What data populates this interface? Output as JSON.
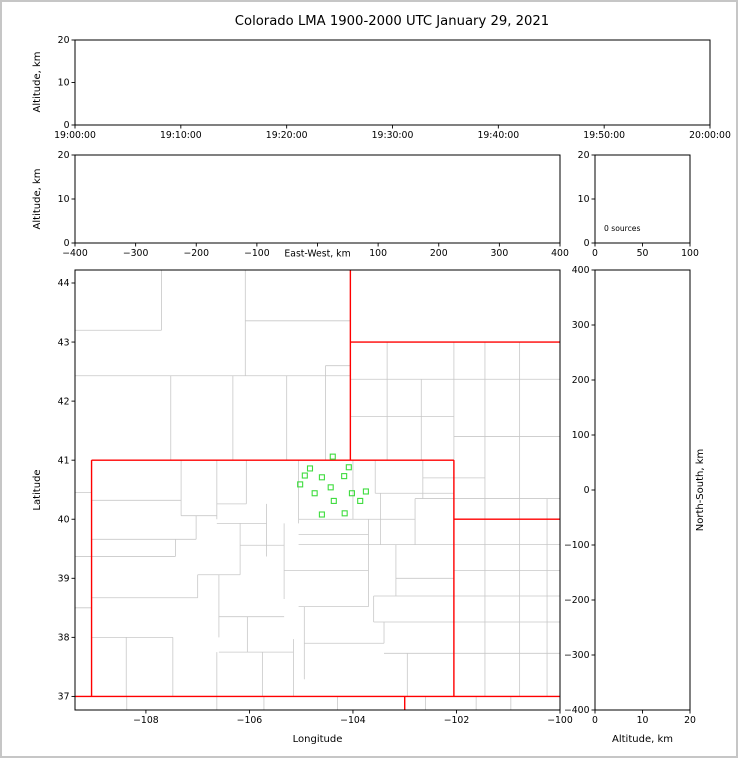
{
  "title": "Colorado LMA 1900-2000 UTC January 29, 2021",
  "colors": {
    "axis": "#000000",
    "state_border": "#ff0000",
    "county_line": "#c8c8c8",
    "station_marker": "#3ddc3d",
    "background": "#ffffff",
    "frame_border": "#c6c6c6"
  },
  "chart_data": [
    {
      "id": "time_height",
      "type": "scatter",
      "ylabel": "Altitude, km",
      "xlabel": "",
      "xlim": [
        0,
        6
      ],
      "ylim": [
        0,
        20
      ],
      "xtick_vals": [
        0,
        1,
        2,
        3,
        4,
        5,
        6
      ],
      "xtick_labels": [
        "19:00:00",
        "19:10:00",
        "19:20:00",
        "19:30:00",
        "19:40:00",
        "19:50:00",
        "20:00:00"
      ],
      "ytick_vals": [
        0,
        10,
        20
      ],
      "ytick_labels": [
        "0",
        "10",
        "20"
      ],
      "points": []
    },
    {
      "id": "ew_height",
      "type": "scatter",
      "ylabel": "Altitude, km",
      "xlabel": "East-West, km",
      "xlabel_inline": true,
      "xlim": [
        -400,
        400
      ],
      "ylim": [
        0,
        20
      ],
      "xtick_vals": [
        -400,
        -300,
        -200,
        -100,
        0,
        100,
        200,
        300,
        400
      ],
      "xtick_labels": [
        "−400",
        "−300",
        "−200",
        "−100",
        "",
        "100",
        "200",
        "300",
        "400"
      ],
      "ytick_vals": [
        0,
        10,
        20
      ],
      "ytick_labels": [
        "0",
        "10",
        "20"
      ],
      "points": []
    },
    {
      "id": "src_hist",
      "type": "histogram",
      "annotation": "0 sources",
      "xlim": [
        0,
        100
      ],
      "ylim": [
        0,
        20
      ],
      "xtick_vals": [
        0,
        50,
        100
      ],
      "xtick_labels": [
        "0",
        "50",
        "100"
      ],
      "ytick_vals": [
        0,
        10,
        20
      ],
      "ytick_labels": [
        "0",
        "10",
        "20"
      ],
      "points": []
    },
    {
      "id": "map",
      "type": "map",
      "xlabel": "Longitude",
      "ylabel": "Latitude",
      "xlim": [
        -109.37,
        -100
      ],
      "ylim": [
        36.77,
        44.22
      ],
      "xtick_vals": [
        -108,
        -106,
        -104,
        -102,
        -100
      ],
      "xtick_labels": [
        "−108",
        "−106",
        "−104",
        "−102",
        "−100"
      ],
      "ytick_vals": [
        37,
        38,
        39,
        40,
        41,
        42,
        43,
        44
      ],
      "ytick_labels": [
        "37",
        "38",
        "39",
        "40",
        "41",
        "42",
        "43",
        "44"
      ],
      "state_borders": [
        [
          -109.05,
          37.0,
          -109.05,
          41.0
        ],
        [
          -109.05,
          41.0,
          -102.05,
          41.0
        ],
        [
          -102.05,
          37.0,
          -102.05,
          41.0
        ],
        [
          -109.37,
          37.0,
          -100.0,
          37.0
        ],
        [
          -104.05,
          41.0,
          -104.05,
          44.22
        ],
        [
          -104.05,
          43.0,
          -100.0,
          43.0
        ],
        [
          -102.05,
          40.0,
          -100.0,
          40.0
        ],
        [
          -103.0,
          36.77,
          -103.0,
          37.0
        ]
      ],
      "county_borders": [
        [
          -107.52,
          41.0,
          -107.52,
          42.43
        ],
        [
          -106.32,
          41.0,
          -106.32,
          42.43
        ],
        [
          -105.28,
          41.0,
          -105.28,
          42.43
        ],
        [
          -104.53,
          41.0,
          -104.53,
          42.6
        ],
        [
          -109.37,
          42.43,
          -104.05,
          42.43
        ],
        [
          -109.37,
          43.2,
          -107.7,
          43.2
        ],
        [
          -107.7,
          43.2,
          -107.7,
          44.22
        ],
        [
          -106.08,
          42.43,
          -106.08,
          44.22
        ],
        [
          -106.08,
          43.36,
          -104.05,
          43.36
        ],
        [
          -104.53,
          42.6,
          -104.05,
          42.6
        ],
        [
          -103.34,
          41.0,
          -103.34,
          43.0
        ],
        [
          -102.68,
          41.0,
          -102.68,
          42.37
        ],
        [
          -102.05,
          41.0,
          -102.05,
          43.0
        ],
        [
          -104.05,
          42.37,
          -100.0,
          42.37
        ],
        [
          -104.05,
          41.74,
          -102.05,
          41.74
        ],
        [
          -102.05,
          41.4,
          -100.0,
          41.4
        ],
        [
          -102.05,
          40.35,
          -100.0,
          40.35
        ],
        [
          -102.05,
          40.7,
          -101.45,
          40.7
        ],
        [
          -101.45,
          37.0,
          -101.45,
          43.0
        ],
        [
          -100.78,
          37.0,
          -100.78,
          43.0
        ],
        [
          -100.25,
          37.0,
          -100.25,
          40.35
        ],
        [
          -102.05,
          39.57,
          -100.0,
          39.57
        ],
        [
          -102.05,
          39.13,
          -100.0,
          39.13
        ],
        [
          -103.6,
          38.7,
          -100.0,
          38.7
        ],
        [
          -103.6,
          38.26,
          -100.0,
          38.26
        ],
        [
          -103.4,
          37.73,
          -100.0,
          37.73
        ],
        [
          -102.6,
          36.77,
          -102.6,
          37.0
        ],
        [
          -101.62,
          36.77,
          -101.62,
          37.0
        ],
        [
          -100.95,
          36.77,
          -100.95,
          37.0
        ],
        [
          -108.37,
          36.77,
          -108.37,
          37.0
        ],
        [
          -106.63,
          36.77,
          -106.63,
          37.75
        ],
        [
          -105.72,
          36.77,
          -105.72,
          37.0
        ],
        [
          -104.3,
          36.77,
          -104.3,
          37.0
        ],
        [
          -109.37,
          40.45,
          -109.05,
          40.45
        ],
        [
          -109.37,
          39.37,
          -109.05,
          39.37
        ],
        [
          -109.37,
          38.5,
          -109.05,
          38.5
        ],
        [
          -107.32,
          40.06,
          -107.32,
          41.0
        ],
        [
          -106.63,
          40.0,
          -106.63,
          41.0
        ],
        [
          -106.06,
          40.26,
          -106.06,
          41.0
        ],
        [
          -105.05,
          39.93,
          -105.05,
          41.0
        ],
        [
          -104.0,
          40.0,
          -104.0,
          41.0
        ],
        [
          -103.57,
          40.44,
          -103.57,
          41.0
        ],
        [
          -103.47,
          39.57,
          -103.47,
          40.44
        ],
        [
          -102.8,
          39.57,
          -102.8,
          40.35
        ],
        [
          -102.65,
          40.35,
          -102.65,
          41.0
        ],
        [
          -103.57,
          40.44,
          -102.05,
          40.44
        ],
        [
          -102.65,
          40.7,
          -102.05,
          40.7
        ],
        [
          -105.05,
          40.0,
          -102.8,
          40.0
        ],
        [
          -109.05,
          40.32,
          -107.32,
          40.32
        ],
        [
          -107.32,
          40.06,
          -106.63,
          40.06
        ],
        [
          -106.63,
          40.26,
          -106.06,
          40.26
        ],
        [
          -102.8,
          40.35,
          -102.05,
          40.35
        ],
        [
          -105.05,
          39.74,
          -103.7,
          39.74
        ],
        [
          -105.05,
          39.57,
          -102.05,
          39.57
        ],
        [
          -103.7,
          38.52,
          -103.7,
          40.0
        ],
        [
          -105.33,
          39.13,
          -103.7,
          39.13
        ],
        [
          -105.33,
          38.65,
          -105.33,
          39.93
        ],
        [
          -105.05,
          38.52,
          -103.7,
          38.52
        ],
        [
          -103.17,
          38.7,
          -103.17,
          39.57
        ],
        [
          -103.17,
          39.0,
          -102.05,
          39.0
        ],
        [
          -103.6,
          38.26,
          -103.6,
          38.7
        ],
        [
          -102.95,
          37.0,
          -102.95,
          37.73
        ],
        [
          -103.4,
          37.9,
          -103.4,
          38.26
        ],
        [
          -104.94,
          37.9,
          -103.4,
          37.9
        ],
        [
          -104.94,
          37.29,
          -104.94,
          38.52
        ],
        [
          -109.05,
          38.0,
          -107.48,
          38.0
        ],
        [
          -109.05,
          38.67,
          -107.0,
          38.67
        ],
        [
          -109.05,
          39.37,
          -107.43,
          39.37
        ],
        [
          -109.05,
          39.66,
          -107.03,
          39.66
        ],
        [
          -107.43,
          39.37,
          -107.43,
          39.66
        ],
        [
          -107.03,
          39.66,
          -107.03,
          40.06
        ],
        [
          -108.38,
          37.0,
          -108.38,
          38.0
        ],
        [
          -107.48,
          37.0,
          -107.48,
          38.0
        ],
        [
          -106.59,
          38.0,
          -106.59,
          39.06
        ],
        [
          -107.0,
          39.06,
          -106.18,
          39.06
        ],
        [
          -106.18,
          39.06,
          -106.18,
          39.93
        ],
        [
          -106.63,
          39.93,
          -105.67,
          39.93
        ],
        [
          -105.67,
          39.37,
          -105.67,
          40.26
        ],
        [
          -106.18,
          39.56,
          -105.33,
          39.56
        ],
        [
          -107.0,
          38.67,
          -107.0,
          39.06
        ],
        [
          -105.75,
          37.0,
          -105.75,
          37.75
        ],
        [
          -106.59,
          37.75,
          -105.15,
          37.75
        ],
        [
          -105.15,
          37.0,
          -105.15,
          37.97
        ],
        [
          -106.04,
          37.75,
          -106.04,
          38.35
        ],
        [
          -106.59,
          38.35,
          -105.33,
          38.35
        ]
      ],
      "stations": [
        [
          -104.39,
          41.06
        ],
        [
          -104.83,
          40.86
        ],
        [
          -104.08,
          40.88
        ],
        [
          -104.93,
          40.74
        ],
        [
          -104.6,
          40.71
        ],
        [
          -104.17,
          40.73
        ],
        [
          -105.02,
          40.59
        ],
        [
          -104.43,
          40.54
        ],
        [
          -104.74,
          40.44
        ],
        [
          -104.02,
          40.44
        ],
        [
          -103.75,
          40.47
        ],
        [
          -104.37,
          40.31
        ],
        [
          -103.86,
          40.31
        ],
        [
          -104.6,
          40.08
        ],
        [
          -104.16,
          40.1
        ]
      ]
    },
    {
      "id": "ns_height",
      "type": "scatter",
      "xlabel": "Altitude, km",
      "ylabel": "North-South, km",
      "ylabel_side": "right",
      "xlim": [
        0,
        20
      ],
      "ylim": [
        -400,
        400
      ],
      "xtick_vals": [
        0,
        10,
        20
      ],
      "xtick_labels": [
        "0",
        "10",
        "20"
      ],
      "ytick_vals": [
        -400,
        -300,
        -200,
        -100,
        0,
        100,
        200,
        300,
        400
      ],
      "ytick_labels": [
        "−400",
        "−300",
        "−200",
        "−100",
        "0",
        "100",
        "200",
        "300",
        "400"
      ],
      "points": []
    }
  ]
}
